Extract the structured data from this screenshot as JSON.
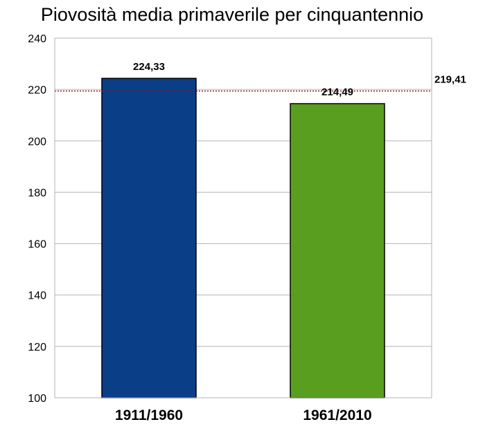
{
  "chart_data": {
    "type": "bar",
    "title": "Piovosità media primaverile per cinquantennio",
    "xlabel": "",
    "ylabel": "",
    "categories": [
      "1911/1960",
      "1961/2010"
    ],
    "values": [
      224.33,
      214.49
    ],
    "value_labels": [
      "224,33",
      "214,49"
    ],
    "bar_colors": [
      "#0a3e86",
      "#5a9e20"
    ],
    "ylim": [
      100,
      240
    ],
    "yticks": [
      100,
      120,
      140,
      160,
      180,
      200,
      220,
      240
    ],
    "grid": true,
    "legend": "none",
    "reference_line": {
      "value": 219.41,
      "label": "219,41",
      "color": "#8b1a1a",
      "style": "dotted"
    }
  }
}
